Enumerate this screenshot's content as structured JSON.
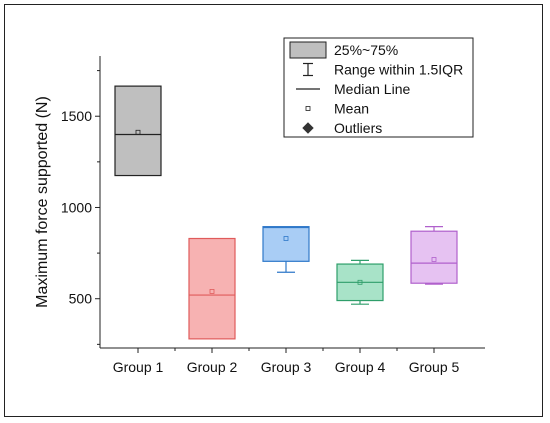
{
  "chart_data": {
    "type": "box",
    "ylabel": "Maximum force supported (N)",
    "xlabel": "",
    "ylim": [
      230,
      1830
    ],
    "yticks": [
      500,
      1000,
      1500
    ],
    "ytick_labels": [
      "500",
      "1000",
      "1500"
    ],
    "minor_yticks": [
      250,
      750,
      1250,
      1750
    ],
    "categories": [
      "Group 1",
      "Group 2",
      "Group 3",
      "Group 4",
      "Group 5"
    ],
    "boxes": [
      {
        "q1": 1175,
        "median": 1400,
        "q3": 1665,
        "whisker_low": 1175,
        "whisker_high": 1665,
        "mean": 1412,
        "fill": "#bfbfbf",
        "edge": "#222222"
      },
      {
        "q1": 280,
        "median": 520,
        "q3": 830,
        "whisker_low": 280,
        "whisker_high": 830,
        "mean": 540,
        "fill": "#f7b2b2",
        "edge": "#e05b5b"
      },
      {
        "q1": 705,
        "median": 890,
        "q3": 895,
        "whisker_low": 645,
        "whisker_high": 895,
        "mean": 830,
        "fill": "#a9cdf5",
        "edge": "#2f78c9"
      },
      {
        "q1": 490,
        "median": 590,
        "q3": 690,
        "whisker_low": 470,
        "whisker_high": 710,
        "mean": 590,
        "fill": "#a8e3c8",
        "edge": "#2e9e6a"
      },
      {
        "q1": 585,
        "median": 695,
        "q3": 870,
        "whisker_low": 580,
        "whisker_high": 895,
        "mean": 715,
        "fill": "#e6c2f2",
        "edge": "#b060cc"
      }
    ],
    "legend": {
      "placement": "top-right",
      "entries": [
        {
          "symbol": "box",
          "label": "25%~75%"
        },
        {
          "symbol": "whisker",
          "label": "Range within 1.5IQR"
        },
        {
          "symbol": "line",
          "label": "Median Line"
        },
        {
          "symbol": "square",
          "label": "Mean"
        },
        {
          "symbol": "diamond",
          "label": "Outliers"
        }
      ]
    },
    "grid": false
  }
}
